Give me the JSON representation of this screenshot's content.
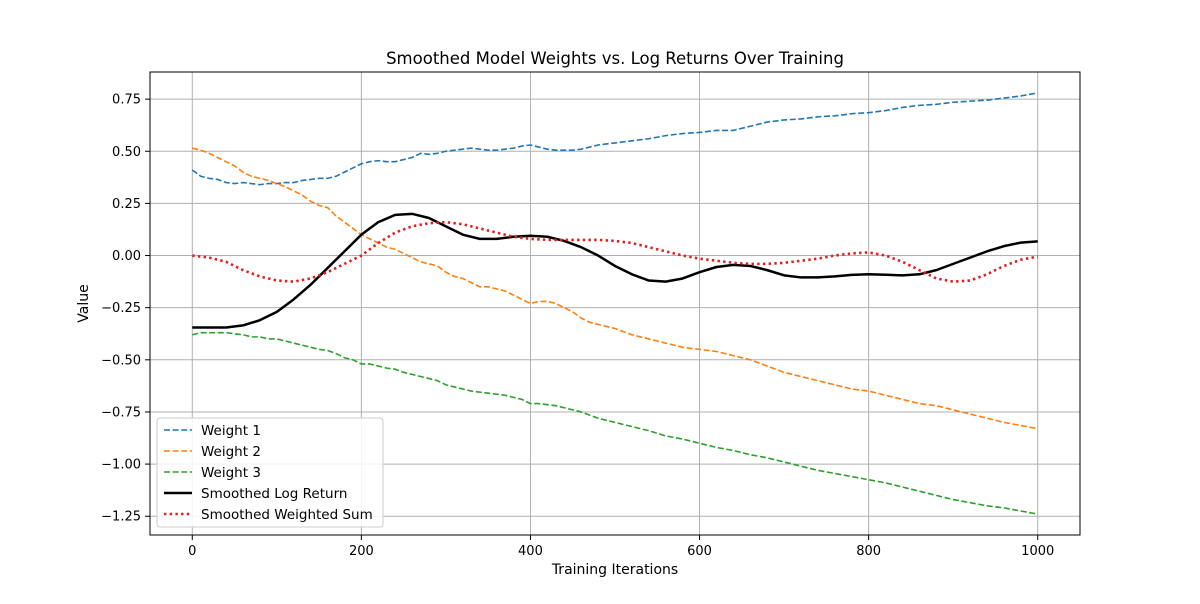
{
  "chart_data": {
    "type": "line",
    "title": "Smoothed Model Weights vs. Log Returns Over Training",
    "xlabel": "Training Iterations",
    "ylabel": "Value",
    "xlim": [
      -50,
      1050
    ],
    "ylim": [
      -1.34,
      0.88
    ],
    "xticks": [
      0,
      200,
      400,
      600,
      800,
      1000
    ],
    "yticks": [
      0.75,
      0.5,
      0.25,
      0.0,
      -0.25,
      -0.5,
      -0.75,
      -1.0,
      -1.25
    ],
    "xtick_labels": [
      "0",
      "200",
      "400",
      "600",
      "800",
      "1000"
    ],
    "ytick_labels": [
      "0.75",
      "0.50",
      "0.25",
      "0.00",
      "−0.25",
      "−0.50",
      "−0.75",
      "−1.00",
      "−1.25"
    ],
    "grid": true,
    "legend_position": "lower left",
    "series": [
      {
        "name": "Weight 1",
        "color": "#1f77b4",
        "style": "dashed",
        "x": [
          0,
          10,
          20,
          30,
          40,
          50,
          60,
          70,
          80,
          90,
          100,
          110,
          120,
          130,
          140,
          150,
          160,
          170,
          180,
          190,
          200,
          210,
          220,
          230,
          240,
          250,
          260,
          270,
          280,
          290,
          300,
          310,
          320,
          330,
          340,
          350,
          360,
          370,
          380,
          390,
          400,
          410,
          420,
          430,
          440,
          450,
          460,
          470,
          480,
          490,
          500,
          520,
          540,
          560,
          580,
          600,
          620,
          640,
          660,
          680,
          700,
          720,
          740,
          760,
          780,
          800,
          820,
          840,
          860,
          880,
          900,
          920,
          940,
          960,
          980,
          1000
        ],
        "y": [
          0.41,
          0.38,
          0.37,
          0.365,
          0.35,
          0.345,
          0.35,
          0.345,
          0.34,
          0.345,
          0.345,
          0.35,
          0.35,
          0.36,
          0.365,
          0.37,
          0.37,
          0.38,
          0.4,
          0.42,
          0.44,
          0.45,
          0.455,
          0.45,
          0.45,
          0.46,
          0.47,
          0.49,
          0.485,
          0.49,
          0.5,
          0.505,
          0.51,
          0.515,
          0.51,
          0.505,
          0.505,
          0.51,
          0.515,
          0.525,
          0.53,
          0.52,
          0.51,
          0.505,
          0.505,
          0.505,
          0.51,
          0.52,
          0.53,
          0.535,
          0.54,
          0.55,
          0.56,
          0.575,
          0.585,
          0.59,
          0.6,
          0.6,
          0.62,
          0.64,
          0.65,
          0.655,
          0.665,
          0.67,
          0.68,
          0.685,
          0.695,
          0.71,
          0.72,
          0.725,
          0.735,
          0.74,
          0.745,
          0.755,
          0.765,
          0.78
        ]
      },
      {
        "name": "Weight 2",
        "color": "#ff7f0e",
        "style": "dashed",
        "x": [
          0,
          10,
          20,
          30,
          40,
          50,
          60,
          70,
          80,
          90,
          100,
          110,
          120,
          130,
          140,
          150,
          160,
          170,
          180,
          190,
          200,
          210,
          220,
          230,
          240,
          250,
          260,
          270,
          280,
          290,
          300,
          310,
          320,
          330,
          340,
          350,
          360,
          370,
          380,
          390,
          400,
          410,
          420,
          430,
          440,
          450,
          460,
          470,
          480,
          490,
          500,
          520,
          540,
          560,
          580,
          600,
          620,
          640,
          660,
          680,
          700,
          720,
          740,
          760,
          780,
          800,
          820,
          840,
          860,
          880,
          900,
          920,
          940,
          960,
          980,
          1000
        ],
        "y": [
          0.515,
          0.505,
          0.49,
          0.47,
          0.45,
          0.43,
          0.4,
          0.38,
          0.37,
          0.36,
          0.345,
          0.33,
          0.31,
          0.29,
          0.26,
          0.24,
          0.23,
          0.19,
          0.16,
          0.13,
          0.1,
          0.08,
          0.06,
          0.04,
          0.03,
          0.01,
          -0.01,
          -0.03,
          -0.04,
          -0.05,
          -0.08,
          -0.1,
          -0.11,
          -0.13,
          -0.15,
          -0.15,
          -0.16,
          -0.17,
          -0.19,
          -0.21,
          -0.23,
          -0.22,
          -0.22,
          -0.23,
          -0.25,
          -0.27,
          -0.3,
          -0.32,
          -0.33,
          -0.34,
          -0.35,
          -0.38,
          -0.4,
          -0.42,
          -0.44,
          -0.45,
          -0.46,
          -0.48,
          -0.5,
          -0.53,
          -0.56,
          -0.58,
          -0.6,
          -0.62,
          -0.64,
          -0.65,
          -0.67,
          -0.69,
          -0.71,
          -0.72,
          -0.74,
          -0.76,
          -0.78,
          -0.8,
          -0.815,
          -0.83
        ]
      },
      {
        "name": "Weight 3",
        "color": "#2ca02c",
        "style": "dashed",
        "x": [
          0,
          10,
          20,
          30,
          40,
          50,
          60,
          70,
          80,
          90,
          100,
          110,
          120,
          130,
          140,
          150,
          160,
          170,
          180,
          190,
          200,
          210,
          220,
          230,
          240,
          250,
          260,
          270,
          280,
          290,
          300,
          310,
          320,
          330,
          340,
          350,
          360,
          370,
          380,
          390,
          400,
          410,
          420,
          430,
          440,
          450,
          460,
          470,
          480,
          490,
          500,
          520,
          540,
          560,
          580,
          600,
          620,
          640,
          660,
          680,
          700,
          720,
          740,
          760,
          780,
          800,
          820,
          840,
          860,
          880,
          900,
          920,
          940,
          960,
          980,
          1000
        ],
        "y": [
          -0.38,
          -0.37,
          -0.37,
          -0.37,
          -0.37,
          -0.375,
          -0.38,
          -0.39,
          -0.39,
          -0.4,
          -0.4,
          -0.41,
          -0.42,
          -0.43,
          -0.44,
          -0.45,
          -0.455,
          -0.47,
          -0.49,
          -0.5,
          -0.52,
          -0.52,
          -0.53,
          -0.54,
          -0.545,
          -0.56,
          -0.57,
          -0.58,
          -0.59,
          -0.6,
          -0.62,
          -0.63,
          -0.64,
          -0.65,
          -0.655,
          -0.66,
          -0.665,
          -0.67,
          -0.68,
          -0.69,
          -0.71,
          -0.71,
          -0.715,
          -0.72,
          -0.73,
          -0.74,
          -0.75,
          -0.765,
          -0.78,
          -0.79,
          -0.8,
          -0.82,
          -0.84,
          -0.865,
          -0.88,
          -0.9,
          -0.92,
          -0.935,
          -0.955,
          -0.97,
          -0.99,
          -1.01,
          -1.03,
          -1.045,
          -1.06,
          -1.075,
          -1.09,
          -1.11,
          -1.13,
          -1.15,
          -1.17,
          -1.185,
          -1.2,
          -1.21,
          -1.225,
          -1.24
        ]
      },
      {
        "name": "Smoothed Log Return",
        "color": "#000000",
        "style": "solid",
        "x": [
          0,
          20,
          40,
          60,
          80,
          100,
          120,
          140,
          160,
          180,
          200,
          220,
          240,
          260,
          280,
          300,
          320,
          340,
          360,
          380,
          400,
          420,
          440,
          460,
          480,
          500,
          520,
          540,
          560,
          580,
          600,
          620,
          640,
          660,
          680,
          700,
          720,
          740,
          760,
          780,
          800,
          820,
          840,
          860,
          880,
          900,
          920,
          940,
          960,
          980,
          1000
        ],
        "y": [
          -0.345,
          -0.345,
          -0.345,
          -0.335,
          -0.31,
          -0.27,
          -0.21,
          -0.14,
          -0.06,
          0.02,
          0.1,
          0.16,
          0.195,
          0.2,
          0.18,
          0.14,
          0.1,
          0.08,
          0.08,
          0.09,
          0.095,
          0.09,
          0.07,
          0.04,
          0.0,
          -0.05,
          -0.09,
          -0.12,
          -0.125,
          -0.11,
          -0.08,
          -0.055,
          -0.045,
          -0.05,
          -0.07,
          -0.095,
          -0.105,
          -0.105,
          -0.1,
          -0.093,
          -0.09,
          -0.092,
          -0.095,
          -0.09,
          -0.07,
          -0.04,
          -0.01,
          0.02,
          0.045,
          0.062,
          0.068
        ]
      },
      {
        "name": "Smoothed Weighted Sum",
        "color": "#e41a1c",
        "style": "dotted",
        "x": [
          0,
          20,
          40,
          60,
          80,
          100,
          120,
          140,
          160,
          180,
          200,
          220,
          240,
          260,
          280,
          300,
          320,
          340,
          360,
          380,
          400,
          420,
          440,
          460,
          480,
          500,
          520,
          540,
          560,
          580,
          600,
          620,
          640,
          660,
          680,
          700,
          720,
          740,
          760,
          780,
          800,
          820,
          840,
          860,
          880,
          900,
          920,
          940,
          960,
          980,
          1000
        ],
        "y": [
          0.0,
          -0.01,
          -0.03,
          -0.07,
          -0.1,
          -0.12,
          -0.125,
          -0.11,
          -0.08,
          -0.04,
          0.0,
          0.06,
          0.11,
          0.14,
          0.155,
          0.16,
          0.15,
          0.13,
          0.11,
          0.09,
          0.08,
          0.075,
          0.075,
          0.075,
          0.075,
          0.07,
          0.06,
          0.04,
          0.02,
          0.0,
          -0.015,
          -0.025,
          -0.035,
          -0.04,
          -0.04,
          -0.035,
          -0.025,
          -0.015,
          0.0,
          0.01,
          0.015,
          0.0,
          -0.03,
          -0.07,
          -0.11,
          -0.125,
          -0.12,
          -0.09,
          -0.05,
          -0.02,
          -0.005
        ]
      }
    ]
  }
}
